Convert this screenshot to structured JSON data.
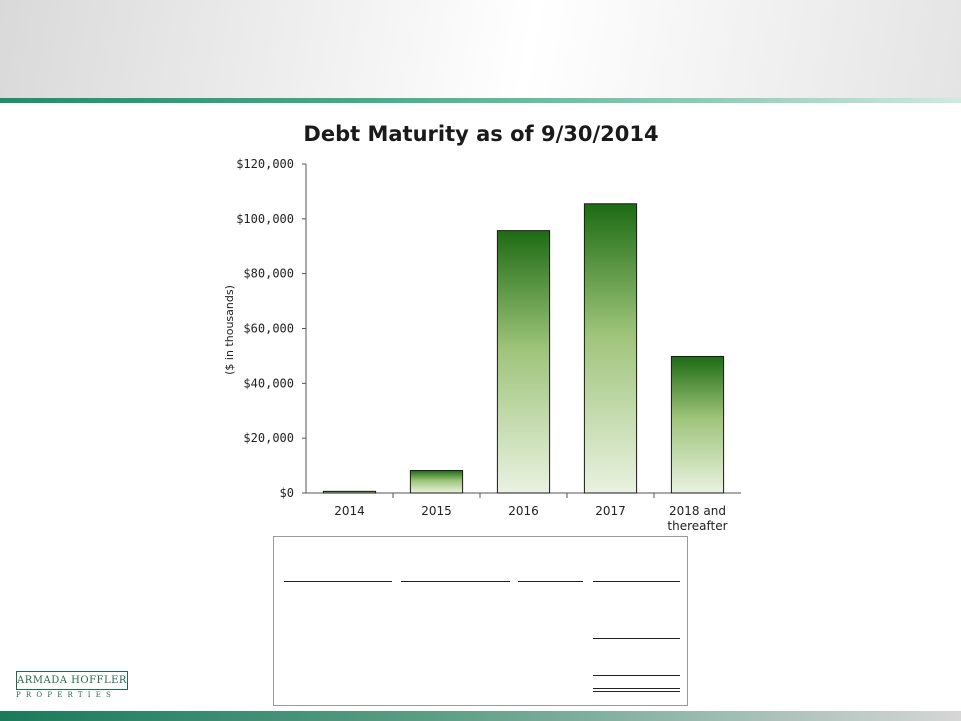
{
  "brand": {
    "name": "ARMADA HOFFLER",
    "sub": "PROPERTIES",
    "color": "#1f6b4a"
  },
  "chart_data": {
    "type": "bar",
    "title": "Debt Maturity as of 9/30/2014",
    "xlabel": "",
    "ylabel": "($ in thousands)",
    "categories": [
      "2014",
      "2015",
      "2016",
      "2017",
      "2018 and thereafter"
    ],
    "category_lines": [
      [
        "2014"
      ],
      [
        "2015"
      ],
      [
        "2016"
      ],
      [
        "2017"
      ],
      [
        "2018 and",
        "thereafter"
      ]
    ],
    "values": [
      600,
      8200,
      95700,
      105500,
      49800
    ],
    "ylim": [
      0,
      120000
    ],
    "yticks": [
      0,
      20000,
      40000,
      60000,
      80000,
      100000,
      120000
    ],
    "ytick_labels": [
      "$0",
      "$20,000",
      "$40,000",
      "$60,000",
      "$80,000",
      "$100,000",
      "$120,000"
    ],
    "grid": false,
    "colors": {
      "bar_top": "#1d6b14",
      "bar_mid": "#9ec47a",
      "bar_bottom": "#e9f2e1",
      "bar_stroke": "#1a1a1a"
    }
  }
}
